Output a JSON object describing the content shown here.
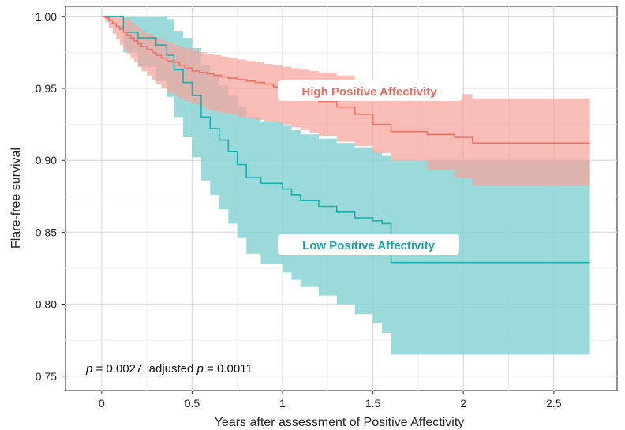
{
  "chart_data": {
    "type": "line",
    "subtype": "kaplan-meier step curves with confidence bands",
    "xlabel": "Years after assessment of Positive Affectivity",
    "ylabel": "Flare-free survival",
    "xlim": [
      -0.2,
      2.85
    ],
    "ylim": [
      0.74,
      1.007
    ],
    "x_ticks": [
      0,
      0.5,
      1,
      1.5,
      2,
      2.5
    ],
    "x_tick_labels": [
      "0",
      "0.5",
      "1",
      "1.5",
      "2",
      "2.5"
    ],
    "y_ticks": [
      0.75,
      0.8,
      0.85,
      0.9,
      0.95,
      1.0
    ],
    "y_tick_labels": [
      "0.75",
      "0.80",
      "0.85",
      "0.90",
      "0.95",
      "1.00"
    ],
    "grid": true,
    "annotation": {
      "p_symbol": "p",
      "value": " = 0.0027, adjusted ",
      "p_symbol2": "p",
      "value2": " = 0.0011"
    },
    "series": [
      {
        "name": "High Positive Affectivity",
        "color": "#f07167",
        "band_color": "#f7a39c",
        "x": [
          0,
          0.02,
          0.04,
          0.06,
          0.08,
          0.1,
          0.12,
          0.14,
          0.16,
          0.18,
          0.2,
          0.22,
          0.25,
          0.28,
          0.3,
          0.33,
          0.36,
          0.4,
          0.43,
          0.46,
          0.5,
          0.54,
          0.58,
          0.62,
          0.66,
          0.7,
          0.75,
          0.8,
          0.85,
          0.9,
          0.95,
          1.0,
          1.05,
          1.1,
          1.15,
          1.2,
          1.3,
          1.4,
          1.5,
          1.6,
          1.8,
          1.95,
          2.05,
          2.2,
          2.7
        ],
        "y": [
          1.0,
          0.999,
          0.997,
          0.995,
          0.993,
          0.991,
          0.989,
          0.987,
          0.985,
          0.983,
          0.981,
          0.979,
          0.977,
          0.975,
          0.973,
          0.971,
          0.969,
          0.968,
          0.966,
          0.964,
          0.962,
          0.961,
          0.96,
          0.959,
          0.958,
          0.957,
          0.956,
          0.955,
          0.954,
          0.953,
          0.951,
          0.949,
          0.947,
          0.945,
          0.943,
          0.941,
          0.937,
          0.932,
          0.925,
          0.92,
          0.918,
          0.916,
          0.912,
          0.912,
          0.912
        ],
        "lower": [
          1.0,
          0.996,
          0.992,
          0.988,
          0.984,
          0.98,
          0.977,
          0.974,
          0.971,
          0.968,
          0.965,
          0.962,
          0.959,
          0.956,
          0.953,
          0.95,
          0.947,
          0.945,
          0.943,
          0.941,
          0.939,
          0.937,
          0.935,
          0.934,
          0.933,
          0.932,
          0.93,
          0.929,
          0.928,
          0.927,
          0.926,
          0.925,
          0.923,
          0.921,
          0.919,
          0.917,
          0.913,
          0.91,
          0.905,
          0.9,
          0.893,
          0.888,
          0.882,
          0.882,
          0.882
        ],
        "upper": [
          1.0,
          1.0,
          1.0,
          1.0,
          1.0,
          1.0,
          0.999,
          0.998,
          0.996,
          0.994,
          0.992,
          0.99,
          0.988,
          0.986,
          0.985,
          0.983,
          0.982,
          0.98,
          0.979,
          0.978,
          0.976,
          0.975,
          0.974,
          0.973,
          0.972,
          0.971,
          0.97,
          0.969,
          0.968,
          0.967,
          0.966,
          0.965,
          0.964,
          0.963,
          0.962,
          0.961,
          0.959,
          0.956,
          0.952,
          0.949,
          0.948,
          0.946,
          0.943,
          0.943,
          0.943
        ]
      },
      {
        "name": "Low Positive Affectivity",
        "color": "#1ab0b0",
        "band_color": "#8ad4d4",
        "x": [
          0,
          0.05,
          0.1,
          0.12,
          0.2,
          0.3,
          0.36,
          0.4,
          0.45,
          0.5,
          0.55,
          0.6,
          0.65,
          0.7,
          0.75,
          0.8,
          0.88,
          1.0,
          1.05,
          1.1,
          1.2,
          1.3,
          1.4,
          1.5,
          1.55,
          1.6,
          2.7
        ],
        "y": [
          1.0,
          1.0,
          1.0,
          0.989,
          0.985,
          0.98,
          0.973,
          0.963,
          0.954,
          0.945,
          0.93,
          0.922,
          0.914,
          0.906,
          0.897,
          0.888,
          0.884,
          0.88,
          0.876,
          0.872,
          0.868,
          0.864,
          0.86,
          0.858,
          0.856,
          0.829,
          0.829
        ],
        "lower": [
          1.0,
          1.0,
          1.0,
          0.975,
          0.965,
          0.955,
          0.944,
          0.93,
          0.916,
          0.902,
          0.886,
          0.876,
          0.866,
          0.856,
          0.846,
          0.835,
          0.828,
          0.822,
          0.817,
          0.812,
          0.806,
          0.8,
          0.793,
          0.787,
          0.78,
          0.765,
          0.765
        ],
        "upper": [
          1.0,
          1.0,
          1.0,
          1.0,
          1.0,
          1.0,
          0.998,
          0.99,
          0.985,
          0.978,
          0.966,
          0.959,
          0.952,
          0.945,
          0.937,
          0.93,
          0.927,
          0.924,
          0.921,
          0.918,
          0.915,
          0.912,
          0.909,
          0.906,
          0.903,
          0.9,
          0.9
        ]
      }
    ]
  }
}
